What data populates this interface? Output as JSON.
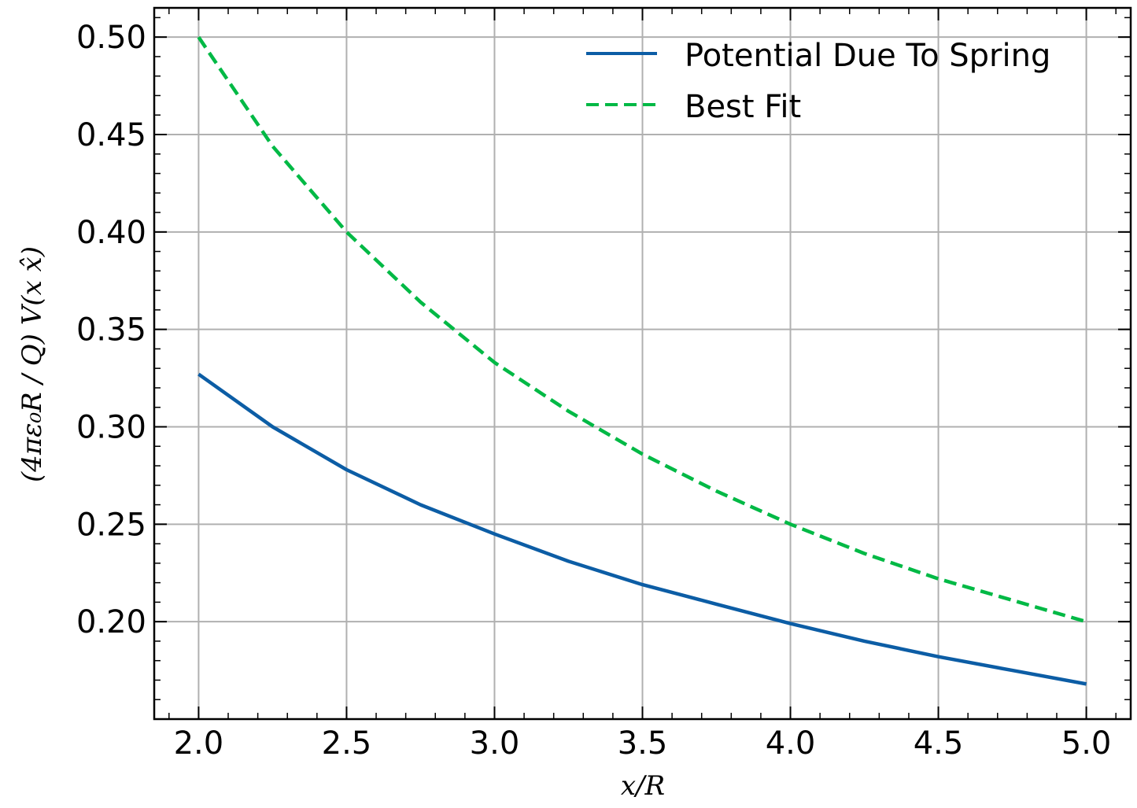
{
  "chart_data": {
    "type": "line",
    "title": "",
    "xlabel": "x/R",
    "ylabel": "(4πε₀R / Q) V(x x̂)",
    "xlim": [
      1.85,
      5.15
    ],
    "ylim": [
      0.15,
      0.515
    ],
    "x_ticks": [
      "2.0",
      "2.5",
      "3.0",
      "3.5",
      "4.0",
      "4.5",
      "5.0"
    ],
    "y_ticks": [
      "0.20",
      "0.25",
      "0.30",
      "0.35",
      "0.40",
      "0.45",
      "0.50"
    ],
    "grid": true,
    "legend_position": "top-right",
    "series": [
      {
        "name": "Potential Due To Spring",
        "color": "#0c5da5",
        "style": "solid",
        "x": [
          2.0,
          2.25,
          2.5,
          2.75,
          3.0,
          3.25,
          3.5,
          3.75,
          4.0,
          4.25,
          4.5,
          4.75,
          5.0
        ],
        "y": [
          0.327,
          0.3,
          0.278,
          0.26,
          0.245,
          0.231,
          0.219,
          0.209,
          0.199,
          0.19,
          0.182,
          0.175,
          0.168
        ]
      },
      {
        "name": "Best Fit",
        "color": "#00b945",
        "style": "dashed",
        "x": [
          2.0,
          2.25,
          2.5,
          2.75,
          3.0,
          3.25,
          3.5,
          3.75,
          4.0,
          4.25,
          4.5,
          4.75,
          5.0
        ],
        "y": [
          0.5,
          0.444,
          0.4,
          0.364,
          0.333,
          0.308,
          0.286,
          0.267,
          0.25,
          0.235,
          0.222,
          0.211,
          0.2
        ]
      }
    ]
  }
}
